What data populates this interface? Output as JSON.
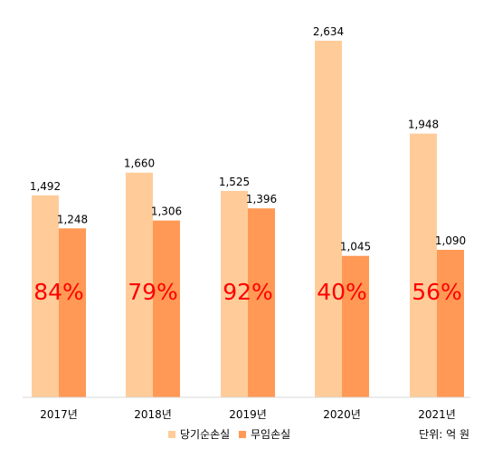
{
  "chart_data": {
    "type": "bar",
    "categories": [
      "2017년",
      "2018년",
      "2019년",
      "2020년",
      "2021년"
    ],
    "series": [
      {
        "name": "당기순손실",
        "values": [
          1492,
          1660,
          1525,
          2634,
          1948
        ],
        "color": "#FFCC99"
      },
      {
        "name": "무임손실",
        "values": [
          1248,
          1306,
          1396,
          1045,
          1090
        ],
        "color": "#FF9955"
      }
    ],
    "ratio_labels": [
      "84%",
      "79%",
      "92%",
      "40%",
      "56%"
    ],
    "ratio_color": "#FF0000",
    "value_labels": [
      [
        "1,492",
        "1,660",
        "1,525",
        "2,634",
        "1,948"
      ],
      [
        "1,248",
        "1,306",
        "1,396",
        "1,045",
        "1,090"
      ]
    ],
    "unit_note": "단위: 억 원",
    "ylim": [
      0,
      2634
    ],
    "grid": false,
    "legend_position": "bottom-center"
  }
}
